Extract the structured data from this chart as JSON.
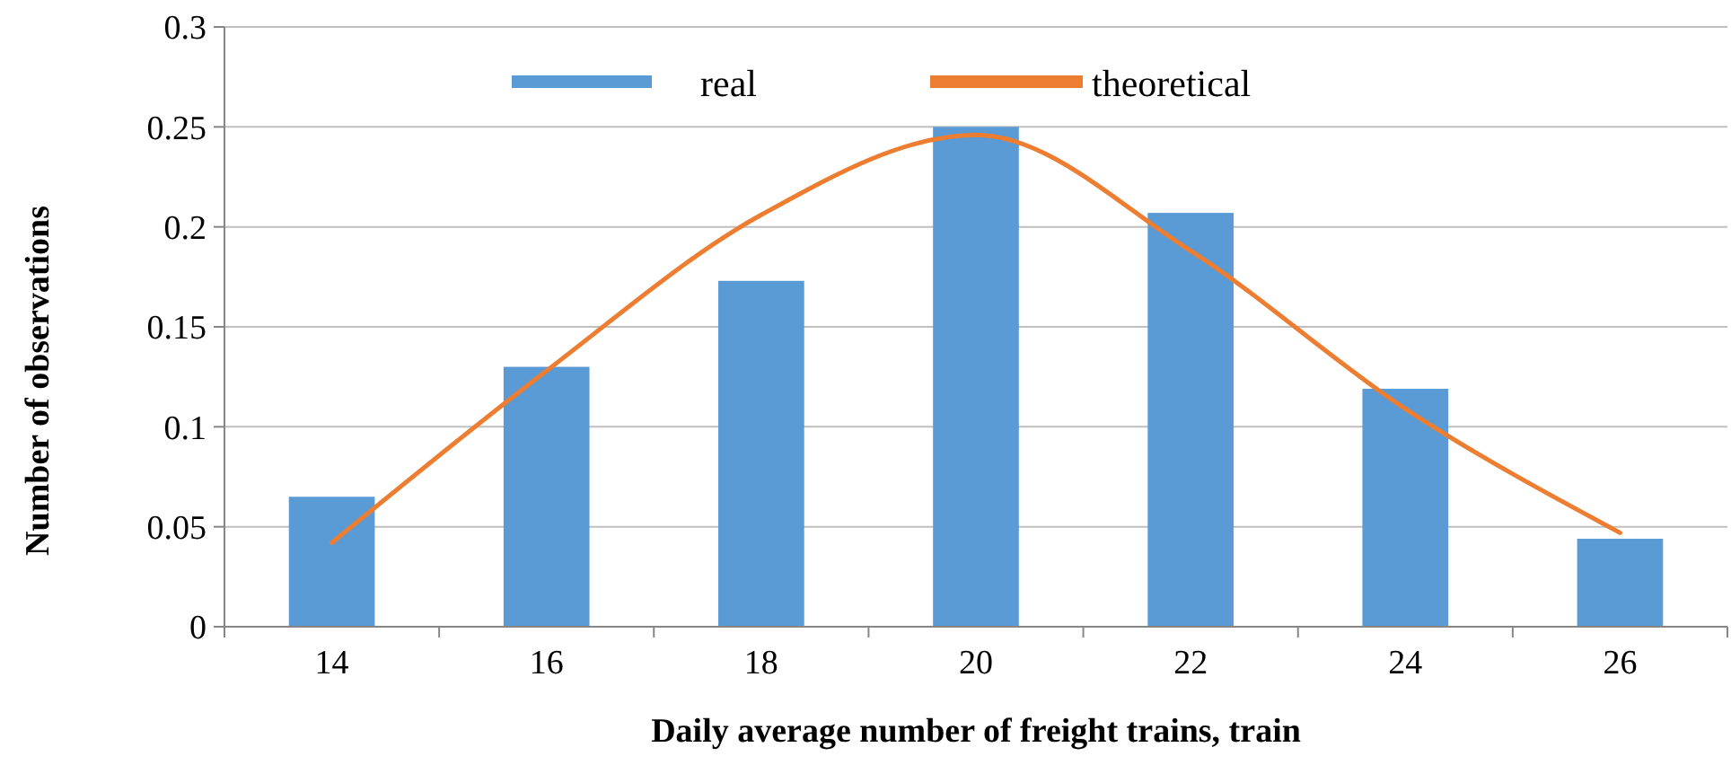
{
  "chart_data": {
    "type": "bar",
    "xlabel": "Daily average number of freight trains, train",
    "ylabel": "Number of observations",
    "categories": [
      "14",
      "16",
      "18",
      "20",
      "22",
      "24",
      "26"
    ],
    "series": [
      {
        "name": "real",
        "color": "#5b9bd5",
        "values": [
          0.065,
          0.13,
          0.173,
          0.25,
          0.207,
          0.119,
          0.044
        ]
      },
      {
        "name": "theoretical",
        "type": "line",
        "color": "#ed7d31",
        "values": [
          0.042,
          0.128,
          0.206,
          0.246,
          0.188,
          0.109,
          0.047
        ]
      }
    ],
    "ylim": [
      0,
      0.3
    ],
    "yticks": [
      0,
      0.05,
      0.1,
      0.15,
      0.2,
      0.25,
      0.3
    ],
    "grid": "y",
    "legend": "top",
    "marker": "none",
    "line_style": "solid"
  }
}
